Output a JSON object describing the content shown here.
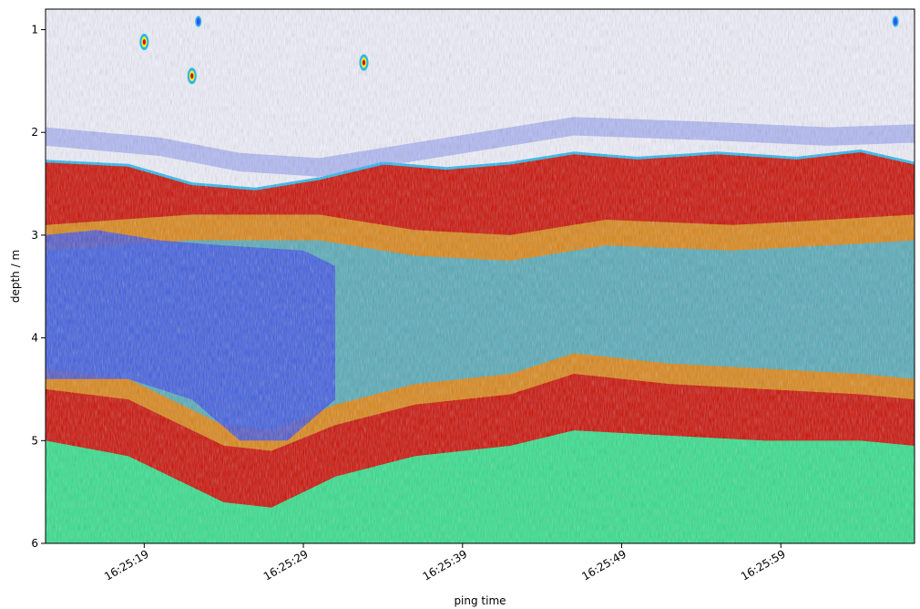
{
  "chart_data": {
    "type": "heatmap",
    "title": "",
    "xlabel": "ping time",
    "ylabel": "depth / m",
    "x_ticks": [
      "16:25:19",
      "16:25:29",
      "16:25:39",
      "16:25:49",
      "16:25:59"
    ],
    "x_tick_seconds": [
      19,
      29,
      39,
      49,
      59
    ],
    "xlim_seconds": [
      12.8,
      67.4
    ],
    "y_ticks": [
      1,
      2,
      3,
      4,
      5,
      6
    ],
    "ylim": [
      6,
      0.8
    ],
    "y_inverted": true,
    "colormap": [
      "#ffffff",
      "#3a4fe8",
      "#25b7f0",
      "#2fe08a",
      "#eaea20",
      "#f07a10",
      "#cc0a00"
    ],
    "grid": false,
    "layers": [
      {
        "name": "surface_noise",
        "top_depth": [
          [
            12.8,
            0.8
          ],
          [
            67.4,
            0.8
          ]
        ],
        "bottom_depth": [
          [
            12.8,
            1.95
          ],
          [
            20,
            2.05
          ],
          [
            25,
            2.2
          ],
          [
            30,
            2.25
          ],
          [
            38,
            2.05
          ],
          [
            46,
            1.85
          ],
          [
            55,
            1.9
          ],
          [
            62,
            1.95
          ],
          [
            67.4,
            1.92
          ]
        ]
      },
      {
        "name": "upper_strong_layer",
        "top_depth": [
          [
            12.8,
            2.28
          ],
          [
            18,
            2.32
          ],
          [
            22,
            2.5
          ],
          [
            26,
            2.55
          ],
          [
            30,
            2.45
          ],
          [
            34,
            2.3
          ],
          [
            38,
            2.35
          ],
          [
            42,
            2.3
          ],
          [
            46,
            2.2
          ],
          [
            50,
            2.25
          ],
          [
            55,
            2.2
          ],
          [
            60,
            2.25
          ],
          [
            64,
            2.18
          ],
          [
            67.4,
            2.3
          ]
        ]
      },
      {
        "name": "weak_water_zone",
        "top_depth": [
          [
            12.8,
            2.9
          ],
          [
            22,
            2.8
          ],
          [
            30,
            2.8
          ],
          [
            36,
            2.95
          ],
          [
            42,
            3.0
          ],
          [
            48,
            2.85
          ],
          [
            56,
            2.9
          ],
          [
            62,
            2.85
          ],
          [
            67.4,
            2.8
          ]
        ],
        "bottom_depth": [
          [
            12.8,
            4.5
          ],
          [
            18,
            4.6
          ],
          [
            24,
            5.05
          ],
          [
            27,
            5.1
          ],
          [
            31,
            4.85
          ],
          [
            36,
            4.65
          ],
          [
            42,
            4.55
          ],
          [
            46,
            4.35
          ],
          [
            52,
            4.45
          ],
          [
            58,
            4.5
          ],
          [
            64,
            4.55
          ],
          [
            67.4,
            4.6
          ]
        ]
      },
      {
        "name": "lower_strong_layer",
        "top_depth": [
          [
            12.8,
            4.5
          ],
          [
            18,
            4.6
          ],
          [
            24,
            5.05
          ],
          [
            27,
            5.1
          ],
          [
            31,
            4.85
          ],
          [
            36,
            4.65
          ],
          [
            42,
            4.55
          ],
          [
            46,
            4.35
          ],
          [
            52,
            4.45
          ],
          [
            58,
            4.5
          ],
          [
            64,
            4.55
          ],
          [
            67.4,
            4.6
          ]
        ],
        "bottom_depth": [
          [
            12.8,
            5.0
          ],
          [
            18,
            5.15
          ],
          [
            24,
            5.6
          ],
          [
            27,
            5.65
          ],
          [
            31,
            5.35
          ],
          [
            36,
            5.15
          ],
          [
            42,
            5.05
          ],
          [
            46,
            4.9
          ],
          [
            52,
            4.95
          ],
          [
            58,
            5.0
          ],
          [
            64,
            5.0
          ],
          [
            67.4,
            5.05
          ]
        ]
      }
    ],
    "point_targets": [
      {
        "t": 19.0,
        "depth": 1.12,
        "strength": "strong"
      },
      {
        "t": 22.0,
        "depth": 1.45,
        "strength": "strong"
      },
      {
        "t": 32.8,
        "depth": 1.32,
        "strength": "strong"
      },
      {
        "t": 22.4,
        "depth": 0.92,
        "strength": "medium"
      },
      {
        "t": 66.2,
        "depth": 0.92,
        "strength": "medium"
      }
    ]
  }
}
